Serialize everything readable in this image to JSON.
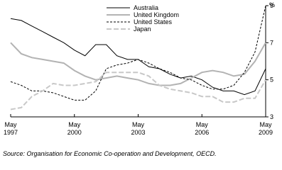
{
  "chart_data": {
    "type": "line",
    "unit": "%",
    "source": "Source: Organisation for Economic Co-operation and Development, OECD.",
    "x": [
      "1997-05",
      "1997-11",
      "1998-05",
      "1998-11",
      "1999-05",
      "1999-11",
      "2000-05",
      "2000-11",
      "2001-05",
      "2001-11",
      "2002-05",
      "2002-11",
      "2003-05",
      "2003-11",
      "2004-05",
      "2004-11",
      "2005-05",
      "2005-11",
      "2006-05",
      "2006-11",
      "2007-05",
      "2007-11",
      "2008-05",
      "2008-11",
      "2009-05"
    ],
    "xlim": [
      "1997-05",
      "2009-05"
    ],
    "xticks": [
      {
        "value": "1997-05",
        "label": "May 1997"
      },
      {
        "value": "2000-05",
        "label": "May 2000"
      },
      {
        "value": "2003-05",
        "label": "May 2003"
      },
      {
        "value": "2006-05",
        "label": "May 2006"
      },
      {
        "value": "2009-05",
        "label": "May 2009"
      }
    ],
    "ylim": [
      3,
      9
    ],
    "yticks": [
      3,
      5,
      7,
      9
    ],
    "series": [
      {
        "name": "Australia",
        "color": "#000000",
        "dash": false,
        "values": [
          8.3,
          8.2,
          7.9,
          7.6,
          7.3,
          7.0,
          6.6,
          6.3,
          6.9,
          6.9,
          6.3,
          6.1,
          6.1,
          5.7,
          5.6,
          5.3,
          5.1,
          5.2,
          5.0,
          4.6,
          4.4,
          4.4,
          4.2,
          4.4,
          5.6
        ]
      },
      {
        "name": "United Kingdom",
        "color": "#b3b3b3",
        "dash": false,
        "values": [
          7.0,
          6.4,
          6.2,
          6.1,
          6.0,
          5.9,
          5.5,
          5.2,
          5.0,
          5.1,
          5.2,
          5.1,
          5.0,
          4.8,
          4.7,
          4.7,
          4.8,
          5.1,
          5.4,
          5.5,
          5.4,
          5.2,
          5.3,
          6.0,
          7.0
        ]
      },
      {
        "name": "United States",
        "color": "#000000",
        "dash": true,
        "values": [
          4.9,
          4.7,
          4.4,
          4.4,
          4.3,
          4.1,
          3.9,
          3.9,
          4.4,
          5.6,
          5.8,
          5.9,
          6.1,
          5.9,
          5.6,
          5.4,
          5.1,
          5.0,
          4.7,
          4.5,
          4.5,
          4.7,
          5.4,
          6.5,
          9.0
        ]
      },
      {
        "name": "Japan",
        "color": "#c8c8c8",
        "dash": true,
        "values": [
          3.4,
          3.5,
          4.1,
          4.4,
          4.8,
          4.7,
          4.7,
          4.8,
          4.9,
          5.4,
          5.4,
          5.4,
          5.4,
          5.2,
          4.7,
          4.5,
          4.4,
          4.3,
          4.1,
          4.1,
          3.8,
          3.8,
          4.0,
          4.0,
          5.0
        ]
      }
    ]
  }
}
